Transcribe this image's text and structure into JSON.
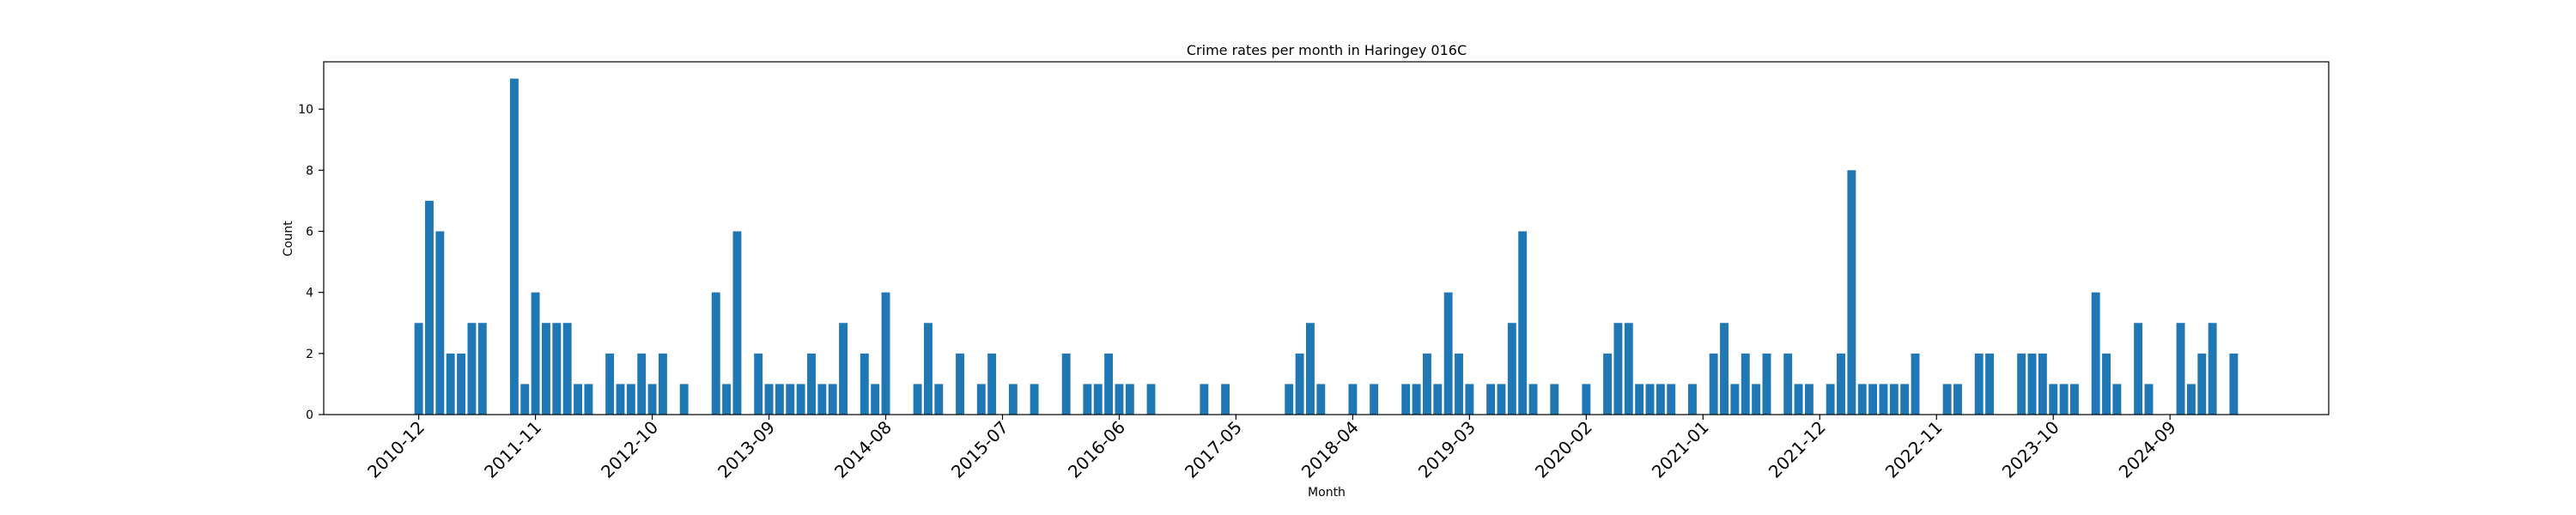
{
  "chart_data": {
    "type": "bar",
    "title": "Crime rates per month in Haringey 016C",
    "xlabel": "Month",
    "ylabel": "Count",
    "ylim": [
      0,
      11.55
    ],
    "yticks": [
      0,
      2,
      4,
      6,
      8,
      10
    ],
    "bar_color": "#1f77b4",
    "grid": false,
    "x": [
      "2010-12",
      "2011-01",
      "2011-02",
      "2011-03",
      "2011-04",
      "2011-05",
      "2011-06",
      "2011-09",
      "2011-10",
      "2011-11",
      "2011-12",
      "2012-01",
      "2012-02",
      "2012-03",
      "2012-04",
      "2012-06",
      "2012-07",
      "2012-08",
      "2012-09",
      "2012-10",
      "2012-11",
      "2013-01",
      "2013-04",
      "2013-05",
      "2013-06",
      "2013-08",
      "2013-09",
      "2013-10",
      "2013-11",
      "2013-12",
      "2014-01",
      "2014-02",
      "2014-03",
      "2014-04",
      "2014-06",
      "2014-07",
      "2014-08",
      "2014-11",
      "2014-12",
      "2015-01",
      "2015-03",
      "2015-05",
      "2015-06",
      "2015-08",
      "2015-10",
      "2016-01",
      "2016-03",
      "2016-04",
      "2016-05",
      "2016-06",
      "2016-07",
      "2016-09",
      "2017-02",
      "2017-04",
      "2017-10",
      "2017-11",
      "2017-12",
      "2018-01",
      "2018-04",
      "2018-06",
      "2018-09",
      "2018-10",
      "2018-11",
      "2018-12",
      "2019-01",
      "2019-02",
      "2019-03",
      "2019-05",
      "2019-06",
      "2019-07",
      "2019-08",
      "2019-09",
      "2019-11",
      "2020-02",
      "2020-04",
      "2020-05",
      "2020-06",
      "2020-07",
      "2020-08",
      "2020-09",
      "2020-10",
      "2020-12",
      "2021-02",
      "2021-03",
      "2021-04",
      "2021-05",
      "2021-06",
      "2021-07",
      "2021-09",
      "2021-10",
      "2021-11",
      "2022-01",
      "2022-02",
      "2022-03",
      "2022-04",
      "2022-05",
      "2022-06",
      "2022-07",
      "2022-08",
      "2022-09",
      "2022-12",
      "2023-01",
      "2023-03",
      "2023-04",
      "2023-07",
      "2023-08",
      "2023-09",
      "2023-10",
      "2023-11",
      "2023-12",
      "2024-02",
      "2024-03",
      "2024-04",
      "2024-06",
      "2024-07",
      "2024-10",
      "2024-11",
      "2024-12",
      "2025-01",
      "2025-03"
    ],
    "values": [
      3,
      7,
      6,
      2,
      2,
      3,
      3,
      11,
      1,
      4,
      3,
      3,
      3,
      1,
      1,
      2,
      1,
      1,
      2,
      1,
      2,
      1,
      4,
      1,
      6,
      2,
      1,
      1,
      1,
      1,
      2,
      1,
      1,
      3,
      2,
      1,
      4,
      1,
      3,
      1,
      2,
      1,
      2,
      1,
      1,
      2,
      1,
      1,
      2,
      1,
      1,
      1,
      1,
      1,
      1,
      2,
      3,
      1,
      1,
      1,
      1,
      1,
      2,
      1,
      4,
      2,
      1,
      1,
      1,
      3,
      6,
      1,
      1,
      1,
      2,
      3,
      3,
      1,
      1,
      1,
      1,
      1,
      2,
      3,
      1,
      2,
      1,
      2,
      2,
      1,
      1,
      1,
      2,
      8,
      1,
      1,
      1,
      1,
      1,
      2,
      1,
      1,
      2,
      2,
      2,
      2,
      2,
      1,
      1,
      1,
      4,
      2,
      1,
      3,
      1,
      3,
      1,
      2,
      3,
      2
    ],
    "xtick_labels": [
      "2010-12",
      "2011-11",
      "2012-10",
      "2013-09",
      "2014-08",
      "2015-07",
      "2016-06",
      "2017-05",
      "2018-04",
      "2019-03",
      "2020-02",
      "2021-01",
      "2021-12",
      "2022-11",
      "2023-10",
      "2024-09"
    ]
  }
}
